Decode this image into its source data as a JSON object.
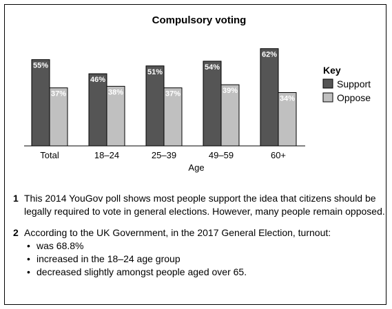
{
  "chart_data": {
    "type": "bar",
    "title": "Compulsory voting",
    "categories": [
      "Total",
      "18–24",
      "25–39",
      "49–59",
      "60+"
    ],
    "series": [
      {
        "name": "Support",
        "values": [
          55,
          46,
          51,
          54,
          62
        ],
        "color": "#555555"
      },
      {
        "name": "Oppose",
        "values": [
          37,
          38,
          37,
          39,
          34
        ],
        "color": "#c0c0c0"
      }
    ],
    "xlabel": "Age",
    "ylabel": "",
    "ylim": [
      0,
      68
    ],
    "grid": false,
    "legend_title": "Key",
    "legend_position": "right",
    "value_suffix": "%"
  },
  "notes": [
    {
      "number": "1",
      "text": "This 2014 YouGov poll shows most people support the idea that citizens should be legally required to vote in general elections.  However, many people remain opposed."
    },
    {
      "number": "2",
      "text": "According to the UK Government, in the 2017 General Election, turnout:",
      "bullets": [
        "was 68.8%",
        "increased in the 18–24 age group",
        "decreased slightly amongst people aged over 65."
      ]
    }
  ]
}
